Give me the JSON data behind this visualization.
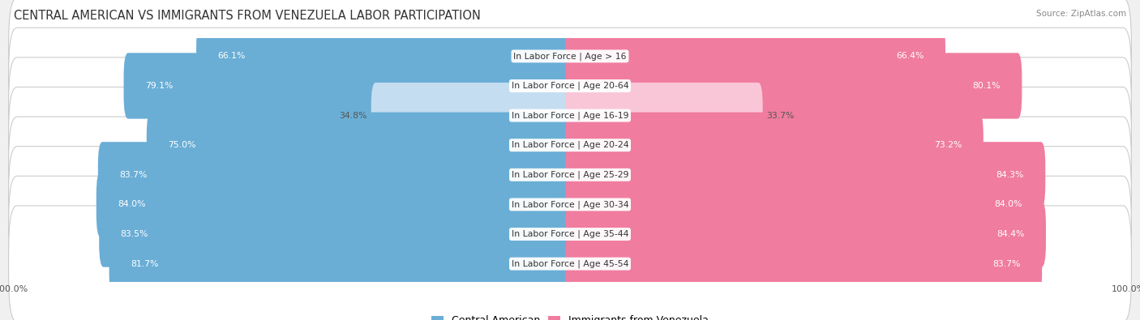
{
  "title": "CENTRAL AMERICAN VS IMMIGRANTS FROM VENEZUELA LABOR PARTICIPATION",
  "source": "Source: ZipAtlas.com",
  "categories": [
    "In Labor Force | Age > 16",
    "In Labor Force | Age 20-64",
    "In Labor Force | Age 16-19",
    "In Labor Force | Age 20-24",
    "In Labor Force | Age 25-29",
    "In Labor Force | Age 30-34",
    "In Labor Force | Age 35-44",
    "In Labor Force | Age 45-54"
  ],
  "central_american": [
    66.1,
    79.1,
    34.8,
    75.0,
    83.7,
    84.0,
    83.5,
    81.7
  ],
  "venezuela": [
    66.4,
    80.1,
    33.7,
    73.2,
    84.3,
    84.0,
    84.4,
    83.7
  ],
  "max_value": 100.0,
  "blue_color": "#6aaed6",
  "blue_light": "#c5ddf0",
  "pink_color": "#f07ca0",
  "pink_light": "#f9c6d8",
  "bar_height": 0.62,
  "background_color": "#f0f0f0",
  "row_bg_color": "#ffffff",
  "title_fontsize": 10.5,
  "label_fontsize": 7.8,
  "value_fontsize": 7.8,
  "legend_fontsize": 9
}
